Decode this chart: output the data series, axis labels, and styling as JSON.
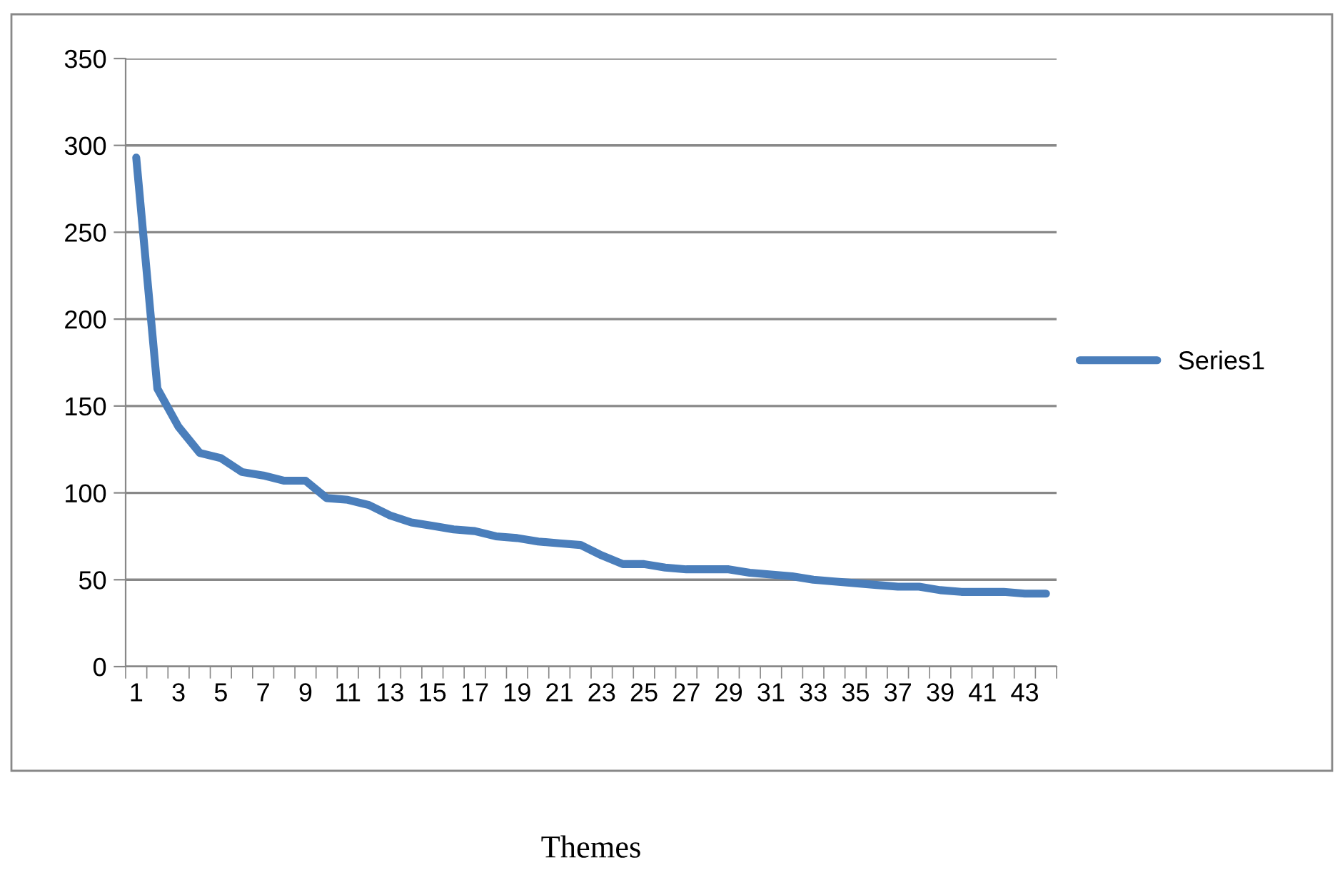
{
  "chart_data": {
    "type": "line",
    "xlabel": "Themes",
    "categories": [
      "1",
      null,
      "3",
      null,
      "5",
      null,
      "7",
      null,
      "9",
      null,
      "11",
      null,
      "13",
      null,
      "15",
      null,
      "17",
      null,
      "19",
      null,
      "21",
      null,
      "23",
      null,
      "25",
      null,
      "27",
      null,
      "29",
      null,
      "31",
      null,
      "33",
      null,
      "35",
      null,
      "37",
      null,
      "39",
      null,
      "41",
      null,
      "43",
      null
    ],
    "series": [
      {
        "name": "Series1",
        "color": "#4a7ebb",
        "values": [
          293,
          160,
          138,
          123,
          120,
          112,
          110,
          107,
          107,
          97,
          96,
          93,
          87,
          83,
          81,
          79,
          78,
          75,
          74,
          72,
          71,
          70,
          64,
          59,
          59,
          57,
          56,
          56,
          56,
          54,
          53,
          52,
          50,
          49,
          48,
          47,
          46,
          46,
          44,
          43,
          43,
          43,
          42,
          42
        ]
      }
    ],
    "ylim": [
      0,
      350
    ],
    "yticks": [
      0,
      50,
      100,
      150,
      200,
      250,
      300,
      350
    ],
    "grid": "y",
    "legend": "right",
    "marker": "none",
    "line_style": "solid"
  }
}
